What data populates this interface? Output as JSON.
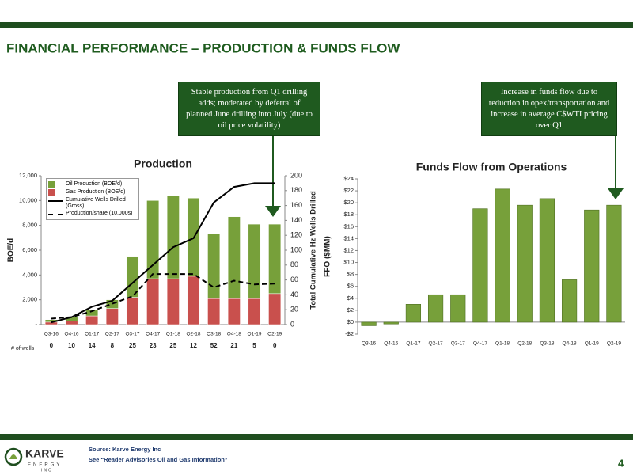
{
  "header": {
    "title": "FINANCIAL PERFORMANCE – PRODUCTION & FUNDS FLOW"
  },
  "callouts": [
    "Stable production from Q1 drilling adds; moderated by deferral of planned June drilling into July (due to oil price volatility)",
    "Increase in funds flow due to reduction in opex/transportation and increase in average C$WTI pricing over Q1"
  ],
  "chart_data": [
    {
      "type": "combo",
      "title": "Production",
      "categories": [
        "Q3-16",
        "Q4-16",
        "Q1-17",
        "Q2-17",
        "Q3-17",
        "Q4-17",
        "Q1-18",
        "Q2-18",
        "Q3-18",
        "Q4-18",
        "Q1-19",
        "Q2-19"
      ],
      "ylabel": "BOE/d",
      "y2label": "Total Cumulative Hz Wells Drilled",
      "ylim": [
        0,
        12000
      ],
      "yticks": [
        {
          "value": 0,
          "label": "-"
        },
        {
          "value": 2000,
          "label": "2,000"
        },
        {
          "value": 4000,
          "label": "4,000"
        },
        {
          "value": 6000,
          "label": "6,000"
        },
        {
          "value": 8000,
          "label": "8,000"
        },
        {
          "value": 10000,
          "label": "10,000"
        },
        {
          "value": 12000,
          "label": "12,000"
        }
      ],
      "y2lim": [
        0,
        200
      ],
      "y2ticks": [
        0,
        20,
        40,
        60,
        80,
        100,
        120,
        140,
        160,
        180,
        200
      ],
      "stacked": true,
      "legend": "top-left",
      "series": [
        {
          "name": "Oil Production (BOE/d)",
          "type": "bar",
          "color": "#77a03a",
          "values": [
            200,
            300,
            500,
            700,
            3300,
            6300,
            6700,
            6300,
            5200,
            6600,
            6000,
            5600
          ]
        },
        {
          "name": "Gas Production (BOE/d)",
          "type": "bar",
          "color": "#c9504d",
          "values": [
            200,
            300,
            700,
            1300,
            2200,
            3700,
            3700,
            3900,
            2100,
            2100,
            2100,
            2500
          ]
        },
        {
          "name": "Cumulative Wells Drilled (Gross)",
          "type": "line",
          "axis": "y2",
          "color": "#000000",
          "values": [
            3,
            10,
            24,
            32,
            56,
            80,
            104,
            116,
            164,
            185,
            190,
            190
          ]
        },
        {
          "name": "Production/share (10,000s)",
          "type": "line",
          "axis": "y2",
          "dash": true,
          "color": "#000000",
          "values": [
            8,
            10,
            18,
            28,
            38,
            68,
            68,
            68,
            50,
            59,
            54,
            55
          ]
        }
      ],
      "row": {
        "label": "# of wells",
        "values": [
          0,
          10,
          14,
          8,
          25,
          23,
          25,
          12,
          52,
          21,
          5,
          0
        ]
      }
    },
    {
      "type": "bar",
      "title": "Funds Flow from Operations",
      "categories": [
        "Q3-16",
        "Q4-16",
        "Q1-17",
        "Q2-17",
        "Q3-17",
        "Q4-17",
        "Q1-18",
        "Q2-18",
        "Q3-18",
        "Q4-18",
        "Q1-19",
        "Q2-19"
      ],
      "ylabel": "FFO ($MM)",
      "ylim": [
        -2,
        24
      ],
      "yticks": [
        {
          "value": -2,
          "label": "-$2"
        },
        {
          "value": 0,
          "label": "$0"
        },
        {
          "value": 2,
          "label": "$2"
        },
        {
          "value": 4,
          "label": "$4"
        },
        {
          "value": 6,
          "label": "$6"
        },
        {
          "value": 8,
          "label": "$8"
        },
        {
          "value": 10,
          "label": "$10"
        },
        {
          "value": 12,
          "label": "$12"
        },
        {
          "value": 14,
          "label": "$14"
        },
        {
          "value": 16,
          "label": "$16"
        },
        {
          "value": 18,
          "label": "$18"
        },
        {
          "value": 20,
          "label": "$20"
        },
        {
          "value": 22,
          "label": "$22"
        },
        {
          "value": 24,
          "label": "$24"
        }
      ],
      "color": "#77a03a",
      "values": [
        -0.6,
        -0.3,
        3.0,
        4.6,
        4.6,
        19.0,
        22.3,
        19.6,
        20.7,
        7.1,
        18.8,
        19.6
      ]
    }
  ],
  "footer": {
    "source": "Source: Karve Energy Inc",
    "note": "See “Reader Advisories Oil and Gas Information”",
    "page": "4"
  },
  "logo": {
    "name": "KARVE",
    "line2": "ENERGY",
    "line3": "INC"
  }
}
